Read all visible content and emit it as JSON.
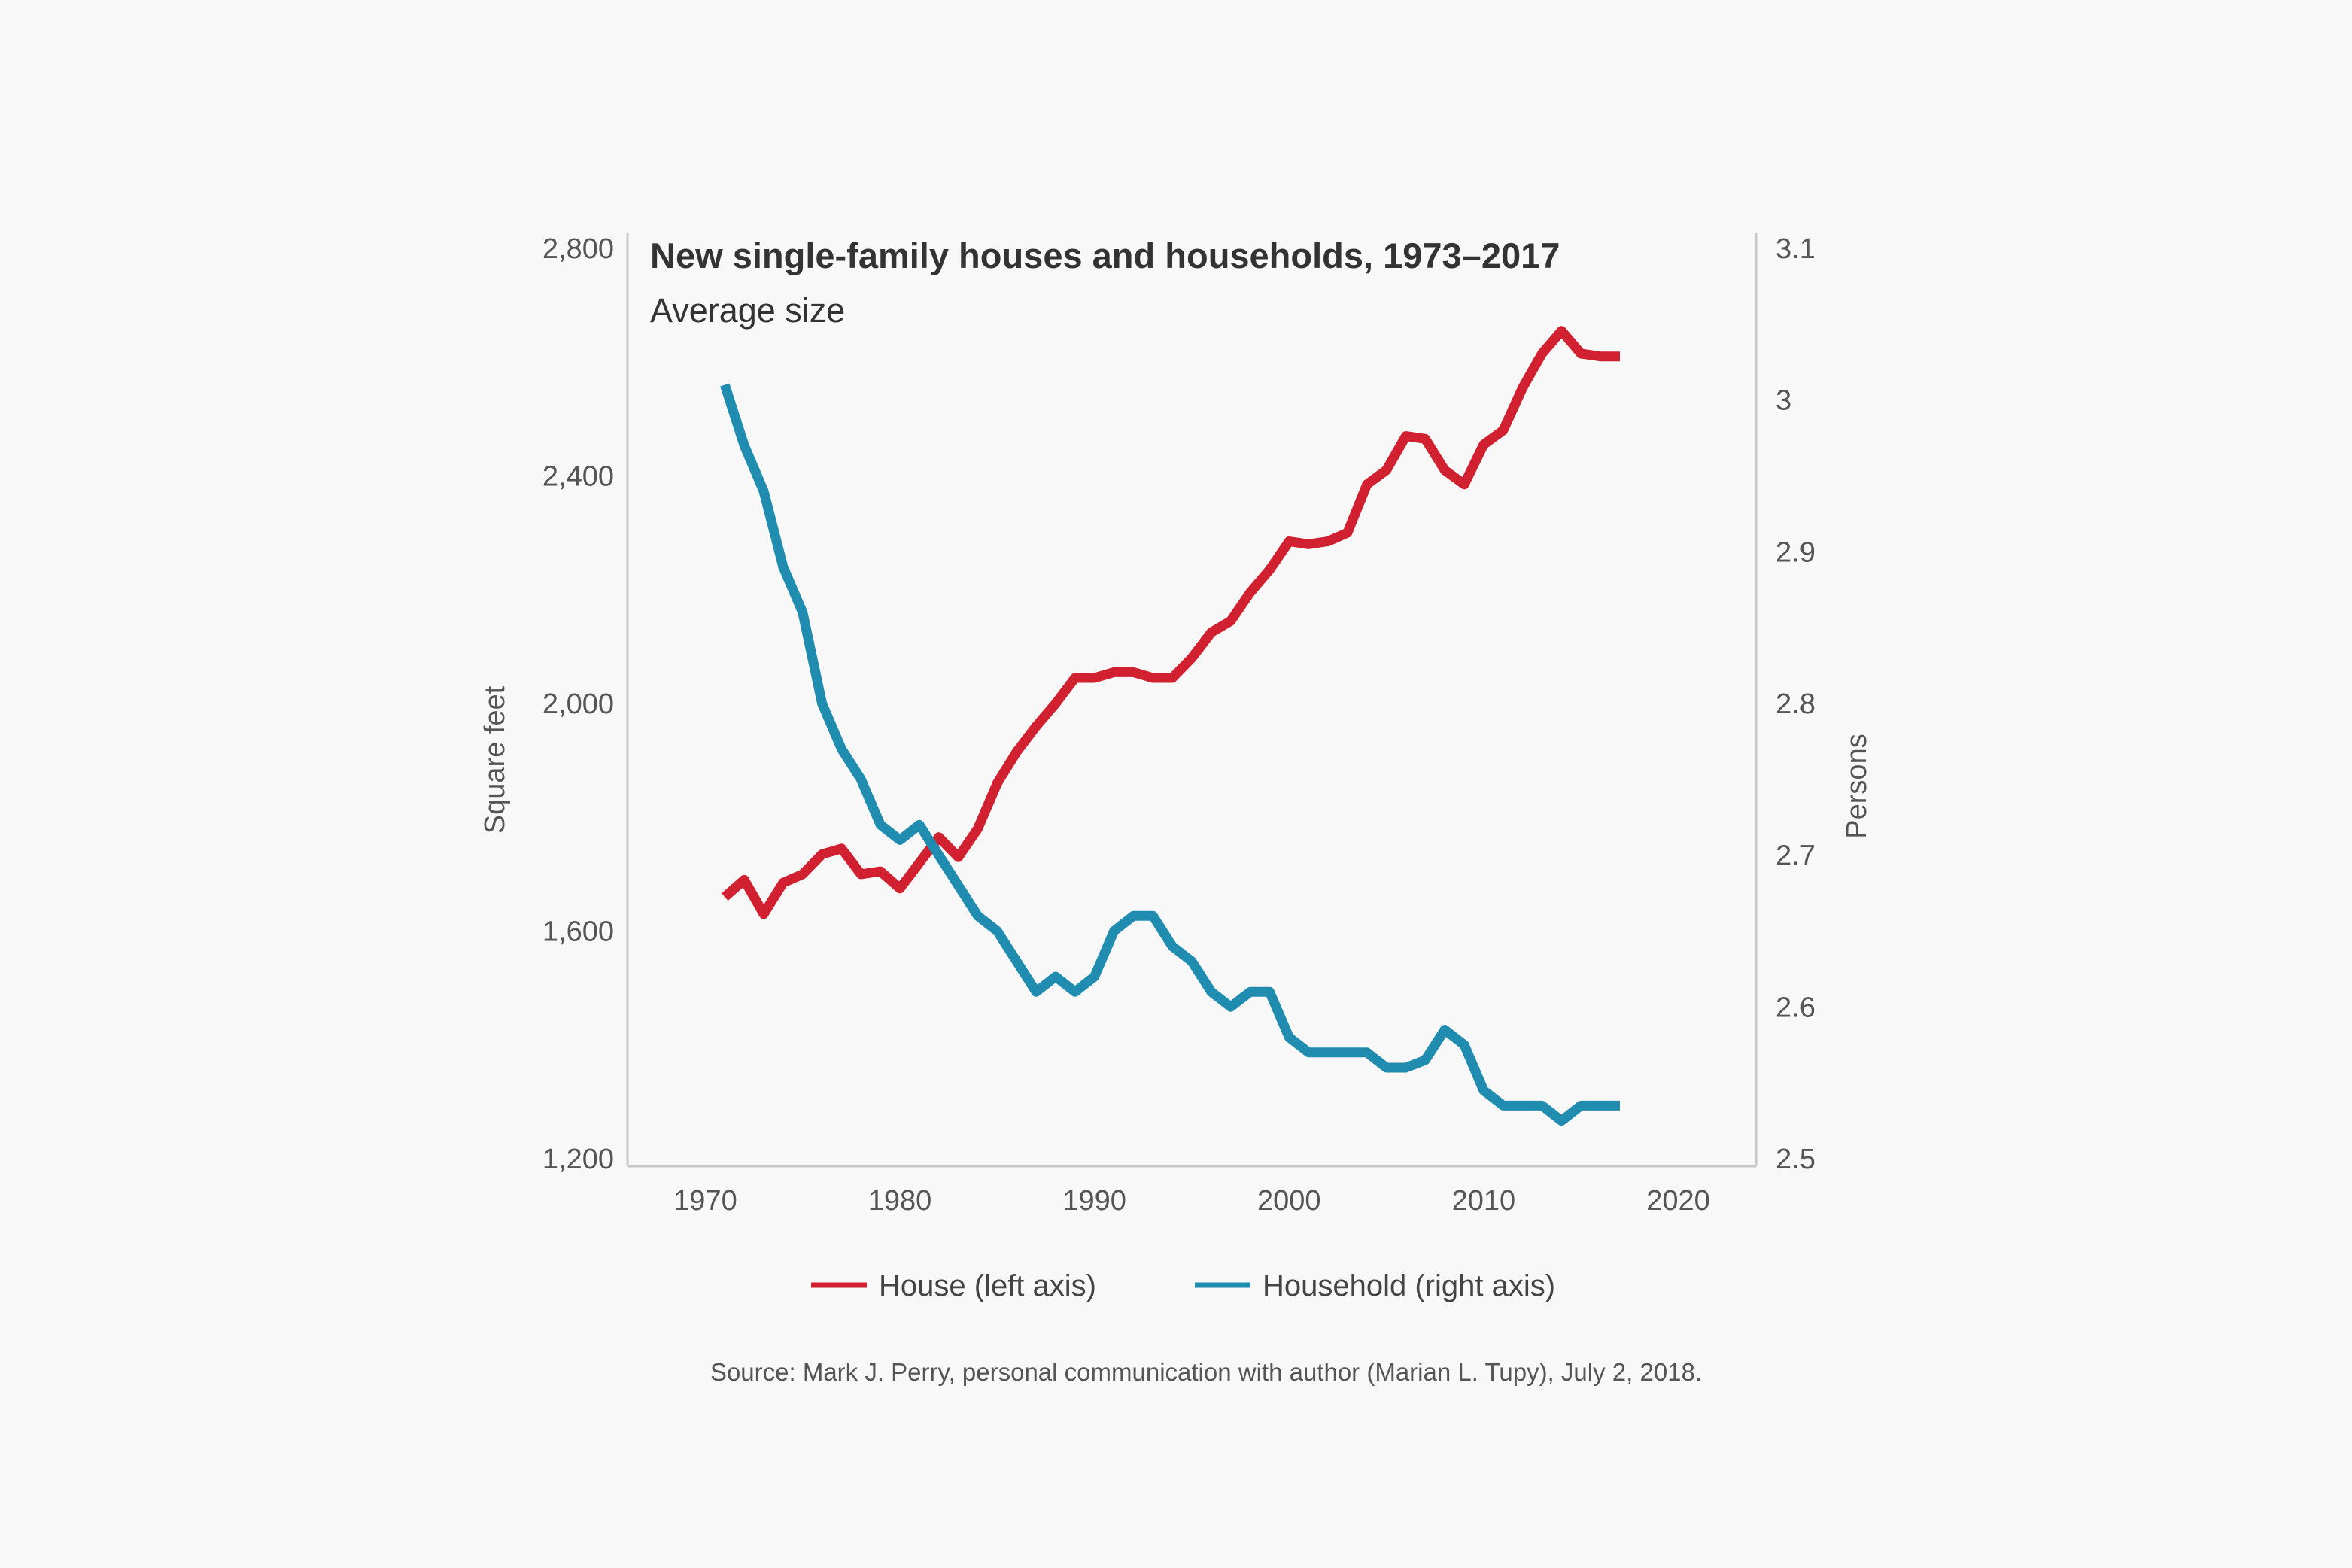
{
  "colors": {
    "house": "#d1202f",
    "household": "#1f8cb0",
    "axis": "#c8c8c8",
    "text": "#555555",
    "background": "#f8f8f8"
  },
  "chart_data": {
    "type": "line",
    "title": "New single-family houses and households, 1973–2017",
    "subtitle": "Average size",
    "xlabel": "",
    "ylabel_left": "Square feet",
    "ylabel_right": "Persons",
    "xlim": [
      1966,
      2024
    ],
    "ylim_left": [
      1200,
      2800
    ],
    "ylim_right": [
      2.5,
      3.1
    ],
    "x_ticks": [
      1970,
      1980,
      1990,
      2000,
      2010,
      2020
    ],
    "x_tick_labels": [
      "1970",
      "1980",
      "1990",
      "2000",
      "2010",
      "2020"
    ],
    "y_left_ticks": [
      1200,
      1600,
      2000,
      2400,
      2800
    ],
    "y_left_tick_labels": [
      "1,200",
      "1,600",
      "2,000",
      "2,400",
      "2,800"
    ],
    "y_right_ticks": [
      2.5,
      2.6,
      2.7,
      2.8,
      2.9,
      3.0,
      3.1
    ],
    "y_right_tick_labels": [
      "2.5",
      "2.6",
      "2.7",
      "2.8",
      "2.9",
      "3",
      "3.1"
    ],
    "grid": false,
    "legend_position": "bottom",
    "series": [
      {
        "name": "House (left axis)",
        "axis": "left",
        "x": [
          1971,
          1972,
          1973,
          1974,
          1975,
          1976,
          1977,
          1978,
          1979,
          1980,
          1981,
          1982,
          1983,
          1984,
          1985,
          1986,
          1987,
          1988,
          1989,
          1990,
          1991,
          1992,
          1993,
          1994,
          1995,
          1996,
          1997,
          1998,
          1999,
          2000,
          2001,
          2002,
          2003,
          2004,
          2005,
          2006,
          2007,
          2008,
          2009,
          2010,
          2011,
          2012,
          2013,
          2014,
          2015,
          2016,
          2017
        ],
        "values": [
          1660,
          1690,
          1630,
          1685,
          1700,
          1735,
          1745,
          1700,
          1705,
          1675,
          1720,
          1765,
          1730,
          1780,
          1860,
          1915,
          1960,
          2000,
          2045,
          2045,
          2055,
          2055,
          2045,
          2045,
          2080,
          2125,
          2145,
          2195,
          2235,
          2285,
          2280,
          2285,
          2300,
          2385,
          2410,
          2470,
          2465,
          2410,
          2385,
          2455,
          2480,
          2555,
          2615,
          2655,
          2615,
          2610,
          2610
        ]
      },
      {
        "name": "Household (right axis)",
        "axis": "right",
        "x": [
          1971,
          1972,
          1973,
          1974,
          1975,
          1976,
          1977,
          1978,
          1979,
          1980,
          1981,
          1982,
          1983,
          1984,
          1985,
          1986,
          1987,
          1988,
          1989,
          1990,
          1991,
          1992,
          1993,
          1994,
          1995,
          1996,
          1997,
          1998,
          1999,
          2000,
          2001,
          2002,
          2003,
          2004,
          2005,
          2006,
          2007,
          2008,
          2009,
          2010,
          2011,
          2012,
          2013,
          2014,
          2015,
          2016,
          2017
        ],
        "values": [
          3.01,
          2.97,
          2.94,
          2.89,
          2.86,
          2.8,
          2.77,
          2.75,
          2.72,
          2.71,
          2.72,
          2.7,
          2.68,
          2.66,
          2.65,
          2.63,
          2.61,
          2.62,
          2.61,
          2.62,
          2.65,
          2.66,
          2.66,
          2.64,
          2.63,
          2.61,
          2.6,
          2.61,
          2.61,
          2.58,
          2.57,
          2.57,
          2.57,
          2.57,
          2.56,
          2.56,
          2.565,
          2.585,
          2.575,
          2.545,
          2.535,
          2.535,
          2.535,
          2.525,
          2.535,
          2.535,
          2.535
        ]
      }
    ],
    "source": "Source: Mark J. Perry, personal communication with author (Marian L. Tupy), July 2, 2018."
  }
}
